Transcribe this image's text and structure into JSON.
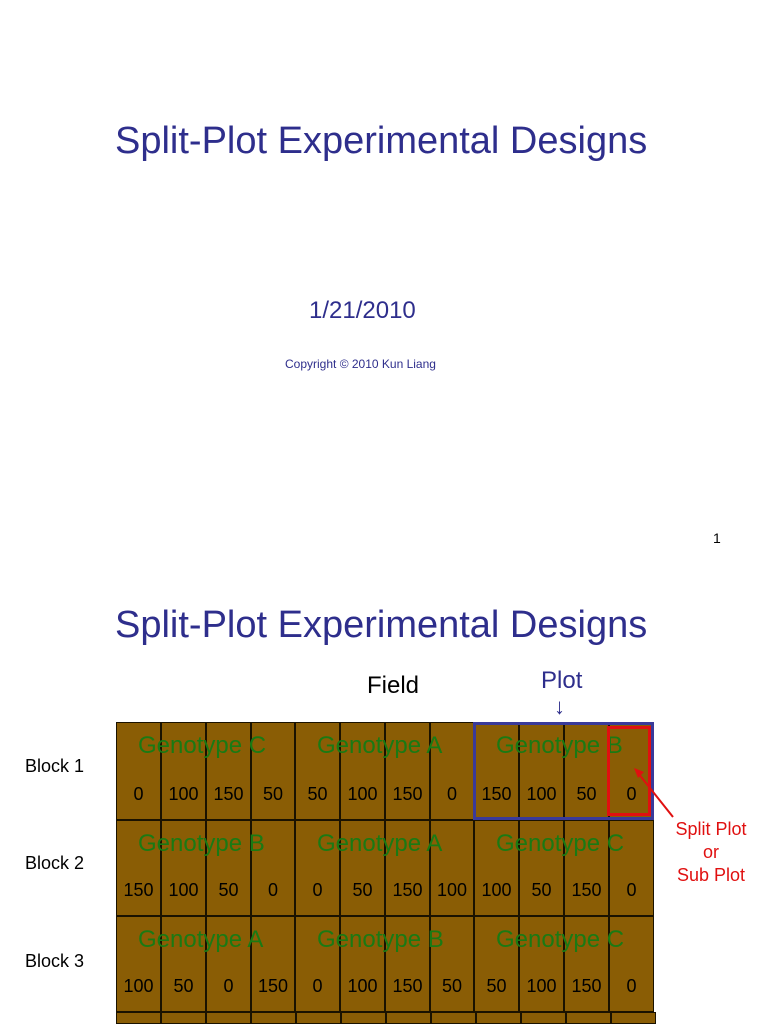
{
  "slide1": {
    "title": "Split-Plot Experimental Designs",
    "date": "1/21/2010",
    "copyright": "Copyright © 2010 Kun Liang",
    "page_number": "1"
  },
  "slide2": {
    "title": "Split-Plot Experimental Designs",
    "field_label": "Field",
    "plot_label": "Plot",
    "plot_arrow": "↓",
    "split_label": [
      "Split Plot",
      "or",
      "Sub Plot"
    ],
    "blocks": [
      {
        "label": "Block 1",
        "plots": [
          {
            "genotype": "Genotype C",
            "rates": [
              "0",
              "100",
              "150",
              "50"
            ]
          },
          {
            "genotype": "Genotype A",
            "rates": [
              "50",
              "100",
              "150",
              "0"
            ]
          },
          {
            "genotype": "Genotype B",
            "rates": [
              "150",
              "100",
              "50",
              "0"
            ]
          }
        ]
      },
      {
        "label": "Block 2",
        "plots": [
          {
            "genotype": "Genotype B",
            "rates": [
              "150",
              "100",
              "50",
              "0"
            ]
          },
          {
            "genotype": "Genotype A",
            "rates": [
              "0",
              "50",
              "150",
              "100"
            ]
          },
          {
            "genotype": "Genotype C",
            "rates": [
              "100",
              "50",
              "150",
              "0"
            ]
          }
        ]
      },
      {
        "label": "Block 3",
        "plots": [
          {
            "genotype": "Genotype A",
            "rates": [
              "100",
              "50",
              "0",
              "150"
            ]
          },
          {
            "genotype": "Genotype B",
            "rates": [
              "0",
              "100",
              "150",
              "50"
            ]
          },
          {
            "genotype": "Genotype C",
            "rates": [
              "50",
              "100",
              "150",
              "0"
            ]
          }
        ]
      }
    ]
  },
  "colors": {
    "title": "#2e2e8c",
    "soil": "#8a5d05",
    "genotype_text": "#1a7a14",
    "plot_highlight": "#3a3a9a",
    "split_highlight": "#e01010"
  }
}
